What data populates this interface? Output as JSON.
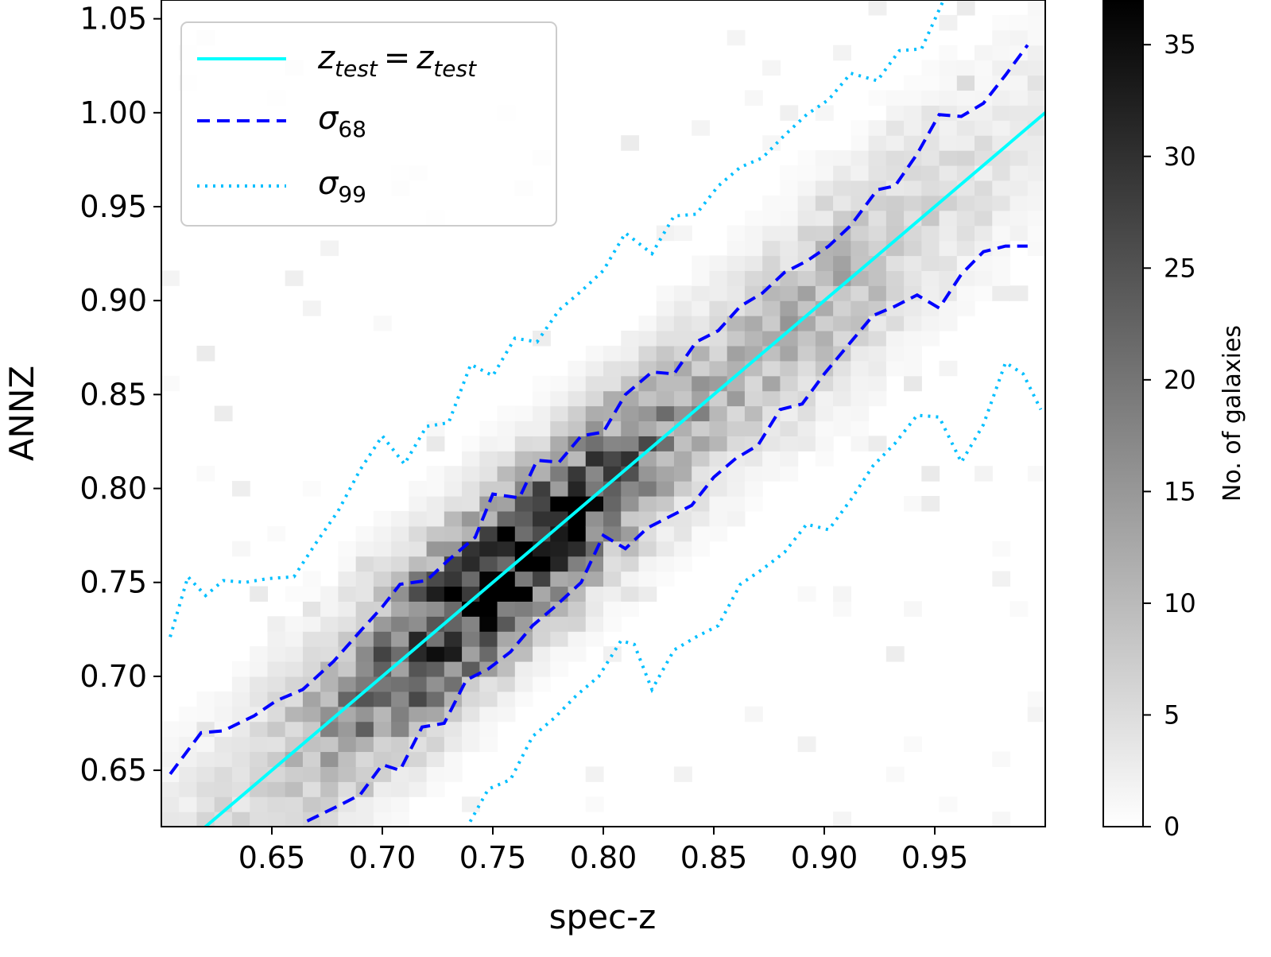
{
  "chart_data": {
    "type": "heatmap",
    "title": "",
    "xlabel": "spec-z",
    "ylabel": "ANNZ",
    "xlim": [
      0.6,
      1.0
    ],
    "ylim": [
      0.62,
      1.06
    ],
    "xticks": [
      "0.65",
      "0.70",
      "0.75",
      "0.80",
      "0.85",
      "0.90",
      "0.95"
    ],
    "yticks": [
      "0.65",
      "0.70",
      "0.75",
      "0.80",
      "0.85",
      "0.90",
      "0.95",
      "1.00",
      "1.05"
    ],
    "colorbar": {
      "label": "No. of galaxies",
      "range": [
        0,
        37
      ],
      "ticks": [
        "0",
        "5",
        "10",
        "15",
        "20",
        "25",
        "30",
        "35"
      ],
      "colormap": "gray_r"
    },
    "histogram": {
      "x_bin_count": 50,
      "y_bin_count": 55,
      "relation": "ANNZ ≈ spec-z",
      "peak_count": 37,
      "peak_at": [
        0.715,
        0.7
      ],
      "note": "2D histogram of galaxy counts; densest along the one-to-one line between spec-z 0.69 and 0.85"
    },
    "series": [
      {
        "name": "ztest = ztest",
        "style": "solid",
        "color": "#00ffff",
        "x": [
          0.6,
          1.0
        ],
        "y": [
          0.6,
          1.0
        ]
      },
      {
        "name": "σ68",
        "style": "dashed",
        "color": "#0000ff",
        "upper": {
          "x": [
            0.604,
            0.618,
            0.628,
            0.642,
            0.652,
            0.664,
            0.678,
            0.69,
            0.7,
            0.708,
            0.72,
            0.73,
            0.742,
            0.75,
            0.762,
            0.77,
            0.78,
            0.79,
            0.8,
            0.81,
            0.822,
            0.832,
            0.842,
            0.852,
            0.862,
            0.872,
            0.882,
            0.892,
            0.902,
            0.912,
            0.924,
            0.932,
            0.942,
            0.952,
            0.962,
            0.972,
            0.982,
            0.992
          ],
          "y": [
            0.648,
            0.67,
            0.671,
            0.679,
            0.687,
            0.693,
            0.708,
            0.724,
            0.737,
            0.749,
            0.751,
            0.762,
            0.774,
            0.797,
            0.795,
            0.815,
            0.814,
            0.828,
            0.83,
            0.85,
            0.862,
            0.861,
            0.878,
            0.884,
            0.897,
            0.904,
            0.915,
            0.921,
            0.929,
            0.94,
            0.959,
            0.961,
            0.978,
            0.999,
            0.998,
            1.005,
            1.02,
            1.036
          ]
        },
        "lower": {
          "x": [
            0.666,
            0.68,
            0.69,
            0.7,
            0.708,
            0.718,
            0.728,
            0.738,
            0.748,
            0.758,
            0.768,
            0.778,
            0.79,
            0.8,
            0.81,
            0.82,
            0.83,
            0.84,
            0.85,
            0.86,
            0.87,
            0.88,
            0.89,
            0.9,
            0.912,
            0.922,
            0.932,
            0.942,
            0.952,
            0.962,
            0.972,
            0.982,
            0.992
          ],
          "y": [
            0.623,
            0.631,
            0.637,
            0.653,
            0.65,
            0.673,
            0.675,
            0.698,
            0.704,
            0.713,
            0.727,
            0.737,
            0.75,
            0.775,
            0.768,
            0.779,
            0.785,
            0.791,
            0.806,
            0.816,
            0.823,
            0.842,
            0.845,
            0.861,
            0.878,
            0.892,
            0.897,
            0.903,
            0.896,
            0.914,
            0.926,
            0.929,
            0.929
          ]
        }
      },
      {
        "name": "σ99",
        "style": "dotted",
        "color": "#00bfff",
        "upper": {
          "x": [
            0.604,
            0.612,
            0.62,
            0.628,
            0.638,
            0.648,
            0.66,
            0.67,
            0.68,
            0.69,
            0.7,
            0.71,
            0.72,
            0.73,
            0.74,
            0.75,
            0.76,
            0.77,
            0.78,
            0.79,
            0.8,
            0.81,
            0.822,
            0.832,
            0.842,
            0.852,
            0.862,
            0.872,
            0.882,
            0.892,
            0.902,
            0.912,
            0.924,
            0.934,
            0.944,
            0.954,
            0.962,
            0.972
          ],
          "y": [
            0.721,
            0.753,
            0.743,
            0.751,
            0.75,
            0.752,
            0.753,
            0.771,
            0.788,
            0.81,
            0.828,
            0.813,
            0.833,
            0.835,
            0.866,
            0.86,
            0.88,
            0.878,
            0.895,
            0.905,
            0.916,
            0.936,
            0.925,
            0.945,
            0.946,
            0.961,
            0.971,
            0.976,
            0.988,
            0.999,
            1.007,
            1.021,
            1.017,
            1.033,
            1.034,
            1.06,
            1.075,
            1.08
          ]
        },
        "lower": {
          "x": [
            0.738,
            0.748,
            0.758,
            0.768,
            0.778,
            0.788,
            0.798,
            0.808,
            0.814,
            0.822,
            0.832,
            0.842,
            0.852,
            0.862,
            0.872,
            0.882,
            0.892,
            0.902,
            0.912,
            0.922,
            0.932,
            0.942,
            0.952,
            0.962,
            0.972,
            0.982,
            0.99,
            0.998
          ],
          "y": [
            0.619,
            0.64,
            0.645,
            0.668,
            0.678,
            0.69,
            0.7,
            0.719,
            0.717,
            0.693,
            0.714,
            0.721,
            0.727,
            0.749,
            0.757,
            0.766,
            0.781,
            0.778,
            0.794,
            0.812,
            0.824,
            0.839,
            0.838,
            0.814,
            0.834,
            0.867,
            0.861,
            0.842
          ]
        }
      }
    ],
    "legend": {
      "position": "upper-left",
      "entries": [
        {
          "base": "z",
          "sub": "test",
          "eq": "=",
          "base2": "z",
          "sub2": "test"
        },
        {
          "base": "σ",
          "sub": "68"
        },
        {
          "base": "σ",
          "sub": "99"
        }
      ]
    }
  }
}
